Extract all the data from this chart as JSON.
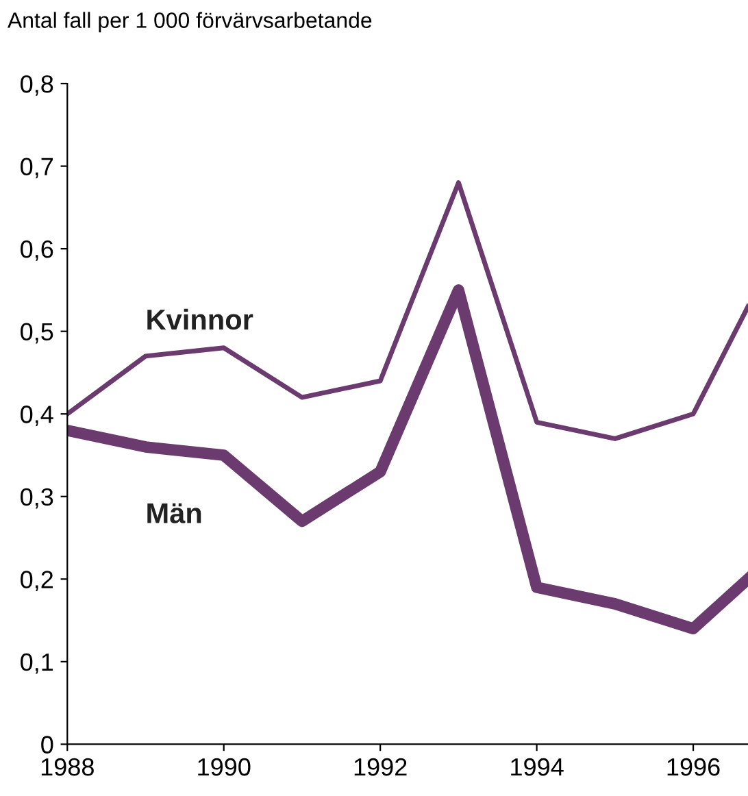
{
  "chart_data": {
    "type": "line",
    "ylabel": "Antal fall per 1 000 förvärvsarbetande",
    "x": [
      1988,
      1989,
      1990,
      1991,
      1992,
      1993,
      1994,
      1995,
      1996,
      1996.7
    ],
    "series": [
      {
        "name": "Kvinnor",
        "color": "#6b3a6e",
        "values": [
          0.4,
          0.47,
          0.48,
          0.42,
          0.44,
          0.68,
          0.39,
          0.37,
          0.4,
          0.53
        ]
      },
      {
        "name": "Män",
        "color": "#6b3a6e",
        "values": [
          0.38,
          0.36,
          0.35,
          0.27,
          0.33,
          0.55,
          0.19,
          0.17,
          0.14,
          0.2
        ]
      }
    ],
    "xlim": [
      1988,
      1996.7
    ],
    "xticks": [
      1988,
      1990,
      1992,
      1994,
      1996
    ],
    "ylim": [
      0,
      0.8
    ],
    "yticks": [
      {
        "value": 0,
        "label": "0"
      },
      {
        "value": 0.1,
        "label": "0,1"
      },
      {
        "value": 0.2,
        "label": "0,2"
      },
      {
        "value": 0.3,
        "label": "0,3"
      },
      {
        "value": 0.4,
        "label": "0,4"
      },
      {
        "value": 0.5,
        "label": "0,5"
      },
      {
        "value": 0.6,
        "label": "0,6"
      },
      {
        "value": 0.7,
        "label": "0,7"
      },
      {
        "value": 0.8,
        "label": "0,8"
      }
    ],
    "grid": false,
    "legend": false,
    "marker": "none",
    "line_style": "solid"
  }
}
